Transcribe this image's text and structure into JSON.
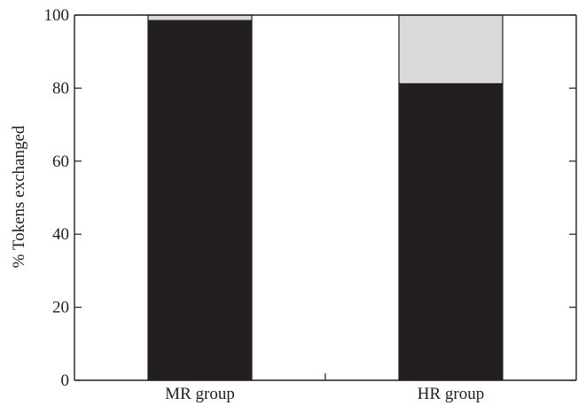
{
  "chart_data": {
    "type": "bar",
    "stacked": true,
    "categories": [
      "MR group",
      "HR group"
    ],
    "series": [
      {
        "values": [
          98.5,
          81.2
        ],
        "color": "#231f20"
      },
      {
        "values": [
          1.5,
          18.8
        ],
        "color": "#d9dadb"
      }
    ],
    "xlabel": "",
    "ylabel": "% Tokens exchanged",
    "ylim": [
      0,
      100
    ],
    "yticks": [
      0,
      20,
      40,
      60,
      80,
      100
    ],
    "grid": false,
    "legend": "none"
  }
}
